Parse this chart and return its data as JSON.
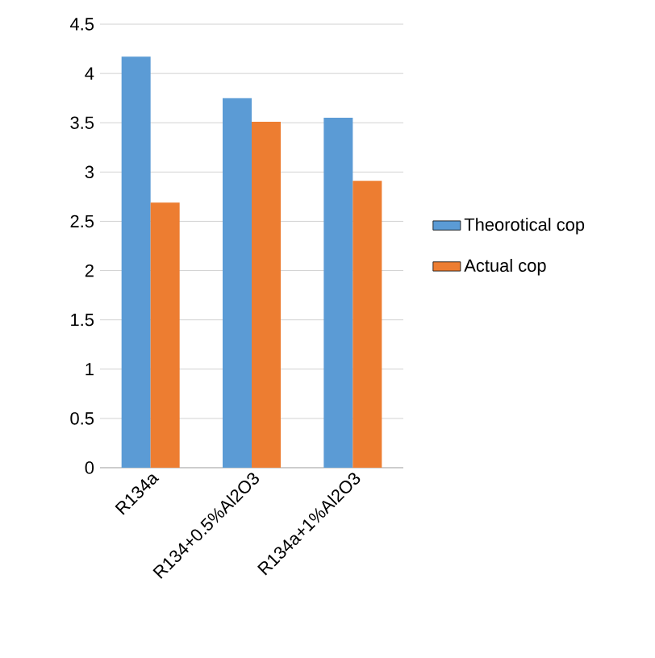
{
  "chart_data": {
    "type": "bar",
    "categories": [
      "R134a",
      "R134+0.5%Al2O3",
      "R134a+1%Al2O3"
    ],
    "series": [
      {
        "name": "Theorotical cop",
        "color": "#5b9bd5",
        "values": [
          4.17,
          3.75,
          3.55
        ]
      },
      {
        "name": "Actual cop",
        "color": "#ed7d31",
        "values": [
          2.69,
          3.51,
          2.91
        ]
      }
    ],
    "ylim": [
      0,
      4.5
    ],
    "yticks": [
      0,
      0.5,
      1,
      1.5,
      2,
      2.5,
      3,
      3.5,
      4,
      4.5
    ],
    "grid": "y",
    "legend": "right"
  }
}
